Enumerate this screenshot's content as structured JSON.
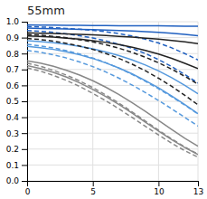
{
  "chart_data": {
    "type": "line",
    "title": "55mm",
    "x": [
      0,
      1,
      2,
      3,
      4,
      5,
      6,
      7,
      8,
      9,
      10,
      11,
      12,
      13
    ],
    "xlim": [
      0,
      13
    ],
    "xticks": [
      0,
      5,
      10,
      13
    ],
    "ylim": [
      0,
      1.0
    ],
    "yticks": [
      {
        "value": 0,
        "label": "0.0"
      },
      0.1,
      0.2,
      0.3,
      0.4,
      0.5,
      0.6,
      0.7,
      0.8,
      0.9,
      {
        "value": 1.0,
        "label": "1.0"
      }
    ],
    "grid": true,
    "series": [
      {
        "color": "#2060c0",
        "line_style": "solid",
        "values": [
          0.98,
          0.979,
          0.978,
          0.977,
          0.977,
          0.976,
          0.976,
          0.975,
          0.975,
          0.974,
          0.974,
          0.973,
          0.972,
          0.972
        ]
      },
      {
        "color": "#2060c0",
        "line_style": "solid",
        "values": [
          0.96,
          0.958,
          0.956,
          0.954,
          0.952,
          0.95,
          0.948,
          0.945,
          0.942,
          0.938,
          0.933,
          0.927,
          0.92,
          0.912
        ]
      },
      {
        "color": "#2060c0",
        "line_style": "dashed",
        "values": [
          0.97,
          0.967,
          0.963,
          0.958,
          0.953,
          0.946,
          0.937,
          0.925,
          0.91,
          0.89,
          0.866,
          0.836,
          0.8,
          0.76
        ]
      },
      {
        "color": "#2060c0",
        "line_style": "dashed",
        "values": [
          0.945,
          0.94,
          0.933,
          0.923,
          0.912,
          0.898,
          0.88,
          0.858,
          0.832,
          0.8,
          0.762,
          0.718,
          0.668,
          0.615
        ]
      },
      {
        "color": "#5599dd",
        "line_style": "solid",
        "values": [
          0.88,
          0.875,
          0.868,
          0.858,
          0.845,
          0.829,
          0.81,
          0.787,
          0.76,
          0.728,
          0.691,
          0.648,
          0.6,
          0.547
        ]
      },
      {
        "color": "#5599dd",
        "line_style": "solid",
        "values": [
          0.845,
          0.837,
          0.826,
          0.811,
          0.792,
          0.769,
          0.741,
          0.709,
          0.672,
          0.63,
          0.584,
          0.533,
          0.479,
          0.422
        ]
      },
      {
        "color": "#5599dd",
        "line_style": "dashed",
        "values": [
          0.858,
          0.848,
          0.835,
          0.818,
          0.797,
          0.772,
          0.742,
          0.708,
          0.669,
          0.626,
          0.579,
          0.529,
          0.476,
          0.421
        ]
      },
      {
        "color": "#5599dd",
        "line_style": "dashed",
        "values": [
          0.82,
          0.808,
          0.792,
          0.772,
          0.747,
          0.718,
          0.684,
          0.645,
          0.602,
          0.555,
          0.505,
          0.453,
          0.399,
          0.344
        ]
      },
      {
        "color": "#222222",
        "line_style": "solid",
        "values": [
          0.93,
          0.928,
          0.926,
          0.923,
          0.92,
          0.917,
          0.913,
          0.908,
          0.903,
          0.897,
          0.89,
          0.882,
          0.873,
          0.862
        ]
      },
      {
        "color": "#222222",
        "line_style": "solid",
        "values": [
          0.91,
          0.907,
          0.903,
          0.897,
          0.89,
          0.881,
          0.87,
          0.856,
          0.84,
          0.82,
          0.797,
          0.77,
          0.739,
          0.706
        ]
      },
      {
        "color": "#222222",
        "line_style": "dashed",
        "values": [
          0.92,
          0.915,
          0.908,
          0.899,
          0.887,
          0.873,
          0.855,
          0.833,
          0.807,
          0.777,
          0.742,
          0.702,
          0.657,
          0.608
        ]
      },
      {
        "color": "#222222",
        "line_style": "dashed",
        "values": [
          0.895,
          0.888,
          0.878,
          0.864,
          0.847,
          0.826,
          0.8,
          0.769,
          0.733,
          0.692,
          0.645,
          0.594,
          0.538,
          0.478
        ]
      },
      {
        "color": "#888888",
        "line_style": "solid",
        "values": [
          0.755,
          0.74,
          0.72,
          0.695,
          0.665,
          0.629,
          0.588,
          0.542,
          0.491,
          0.437,
          0.38,
          0.323,
          0.268,
          0.218
        ]
      },
      {
        "color": "#888888",
        "line_style": "solid",
        "values": [
          0.725,
          0.706,
          0.682,
          0.652,
          0.616,
          0.575,
          0.529,
          0.479,
          0.425,
          0.369,
          0.313,
          0.259,
          0.209,
          0.166
        ]
      },
      {
        "color": "#888888",
        "line_style": "dashed",
        "values": [
          0.74,
          0.72,
          0.695,
          0.664,
          0.628,
          0.586,
          0.539,
          0.488,
          0.433,
          0.376,
          0.319,
          0.264,
          0.213,
          0.168
        ]
      },
      {
        "color": "#888888",
        "line_style": "dashed",
        "values": [
          0.71,
          0.69,
          0.663,
          0.631,
          0.593,
          0.55,
          0.503,
          0.452,
          0.398,
          0.343,
          0.289,
          0.237,
          0.19,
          0.149
        ]
      }
    ]
  }
}
